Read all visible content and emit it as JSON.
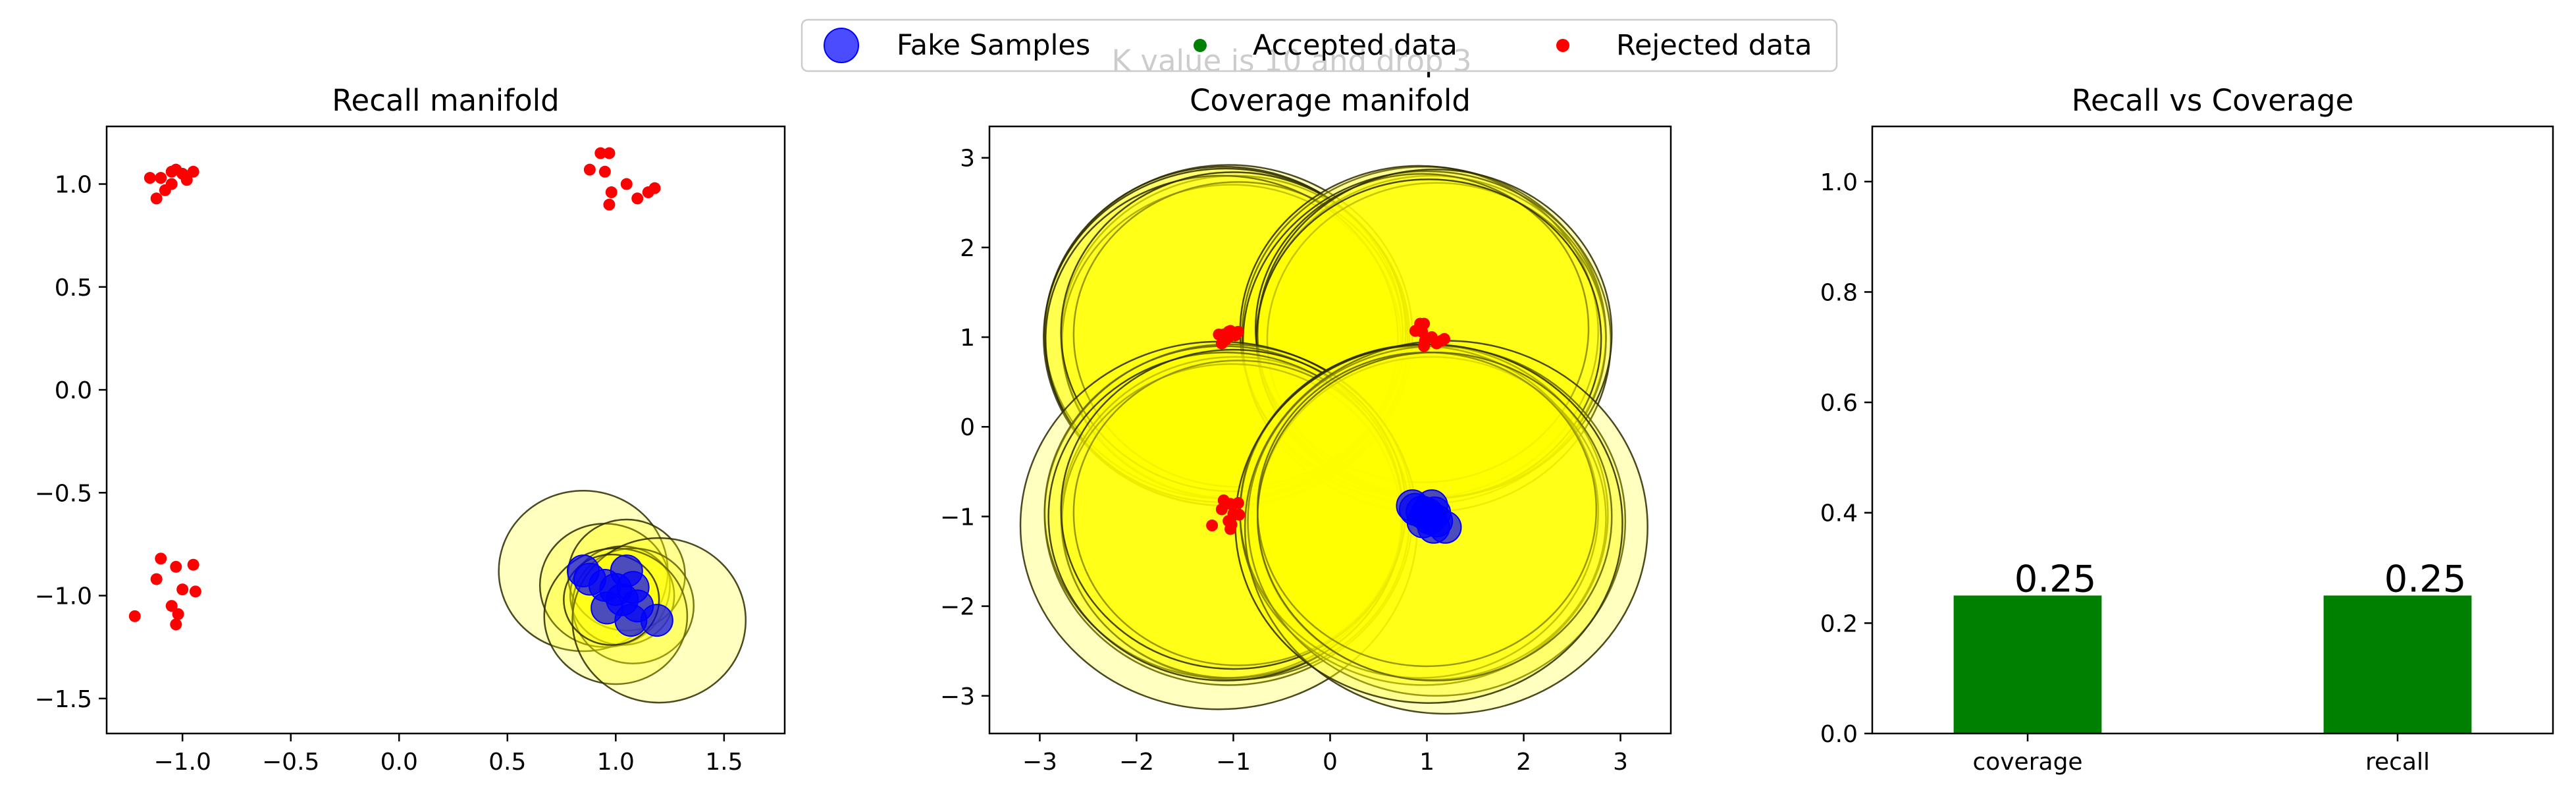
{
  "figure": {
    "suptitle": "K value is 10 and drop 3",
    "legend": {
      "placement": "top-center",
      "entries": [
        {
          "label": "Fake Samples",
          "color": "#0000ff",
          "marker": "large-circle"
        },
        {
          "label": "Accepted data",
          "color": "#008000",
          "marker": "small-dot"
        },
        {
          "label": "Rejected data",
          "color": "#ff0000",
          "marker": "small-dot"
        }
      ]
    }
  },
  "chart_data": [
    {
      "type": "scatter",
      "title": "Recall manifold",
      "xlabel": "",
      "ylabel": "",
      "xlim": [
        -1.35,
        1.78
      ],
      "ylim": [
        -1.67,
        1.28
      ],
      "xticks": [
        "−1.0",
        "−0.5",
        "0.0",
        "0.5",
        "1.0",
        "1.5"
      ],
      "xtick_values": [
        -1.0,
        -0.5,
        0.0,
        0.5,
        1.0,
        1.5
      ],
      "yticks": [
        "−1.5",
        "−1.0",
        "−0.5",
        "0.0",
        "0.5",
        "1.0"
      ],
      "ytick_values": [
        -1.5,
        -1.0,
        -0.5,
        0.0,
        0.5,
        1.0
      ],
      "grid": false,
      "rejected_color": "#ff0000",
      "fake_color": "#0000ff",
      "circle_fill": "#ffff00",
      "rejected": [
        [
          -1.1,
          1.03
        ],
        [
          -1.05,
          1.06
        ],
        [
          -1.0,
          1.05
        ],
        [
          -0.95,
          1.06
        ],
        [
          -1.03,
          1.07
        ],
        [
          -1.08,
          0.97
        ],
        [
          -1.12,
          0.93
        ],
        [
          -1.05,
          1.0
        ],
        [
          -0.98,
          1.02
        ],
        [
          -1.15,
          1.03
        ],
        [
          0.88,
          1.07
        ],
        [
          0.93,
          1.15
        ],
        [
          0.97,
          1.15
        ],
        [
          0.95,
          1.06
        ],
        [
          1.05,
          1.0
        ],
        [
          0.98,
          0.96
        ],
        [
          1.1,
          0.93
        ],
        [
          1.15,
          0.96
        ],
        [
          1.18,
          0.98
        ],
        [
          0.97,
          0.9
        ],
        [
          -1.1,
          -0.82
        ],
        [
          -1.03,
          -0.86
        ],
        [
          -0.95,
          -0.85
        ],
        [
          -1.12,
          -0.92
        ],
        [
          -1.0,
          -0.97
        ],
        [
          -0.94,
          -0.98
        ],
        [
          -1.05,
          -1.05
        ],
        [
          -1.02,
          -1.09
        ],
        [
          -1.03,
          -1.14
        ],
        [
          -1.22,
          -1.1
        ]
      ],
      "fake": [
        [
          0.85,
          -0.88
        ],
        [
          0.88,
          -0.92
        ],
        [
          0.95,
          -0.95
        ],
        [
          1.0,
          -0.97
        ],
        [
          1.05,
          -0.88
        ],
        [
          1.08,
          -0.96
        ],
        [
          1.03,
          -1.02
        ],
        [
          0.96,
          -1.06
        ],
        [
          1.1,
          -1.05
        ],
        [
          1.07,
          -1.12
        ],
        [
          1.19,
          -1.12
        ]
      ],
      "circles": [
        {
          "cx": 0.85,
          "cy": -0.88,
          "r": 0.39
        },
        {
          "cx": 0.95,
          "cy": -0.95,
          "r": 0.3
        },
        {
          "cx": 1.05,
          "cy": -0.9,
          "r": 0.27
        },
        {
          "cx": 1.03,
          "cy": -1.0,
          "r": 0.24
        },
        {
          "cx": 1.08,
          "cy": -1.05,
          "r": 0.28
        },
        {
          "cx": 1.0,
          "cy": -1.1,
          "r": 0.33
        },
        {
          "cx": 1.2,
          "cy": -1.12,
          "r": 0.4
        },
        {
          "cx": 0.98,
          "cy": -1.02,
          "r": 0.22
        }
      ]
    },
    {
      "type": "scatter",
      "title": "Coverage manifold",
      "xlabel": "",
      "ylabel": "",
      "xlim": [
        -3.52,
        3.52
      ],
      "ylim": [
        -3.42,
        3.35
      ],
      "xticks": [
        "−3",
        "−2",
        "−1",
        "0",
        "1",
        "2",
        "3"
      ],
      "xtick_values": [
        -3,
        -2,
        -1,
        0,
        1,
        2,
        3
      ],
      "yticks": [
        "−3",
        "−2",
        "−1",
        "0",
        "1",
        "2",
        "3"
      ],
      "ytick_values": [
        -3,
        -2,
        -1,
        0,
        1,
        2,
        3
      ],
      "grid": false,
      "rejected_color": "#ff0000",
      "fake_color": "#0000ff",
      "circle_fill": "#ffff00",
      "rejected": [
        [
          -1.1,
          1.03
        ],
        [
          -1.05,
          1.06
        ],
        [
          -1.0,
          1.05
        ],
        [
          -0.95,
          1.06
        ],
        [
          -1.03,
          1.07
        ],
        [
          -1.08,
          0.97
        ],
        [
          -1.12,
          0.93
        ],
        [
          -1.05,
          1.0
        ],
        [
          -0.98,
          1.02
        ],
        [
          -1.15,
          1.03
        ],
        [
          0.88,
          1.07
        ],
        [
          0.93,
          1.15
        ],
        [
          0.97,
          1.15
        ],
        [
          0.95,
          1.06
        ],
        [
          1.05,
          1.0
        ],
        [
          0.98,
          0.96
        ],
        [
          1.1,
          0.93
        ],
        [
          1.15,
          0.96
        ],
        [
          1.18,
          0.98
        ],
        [
          0.97,
          0.9
        ],
        [
          -1.1,
          -0.82
        ],
        [
          -1.03,
          -0.86
        ],
        [
          -0.95,
          -0.85
        ],
        [
          -1.12,
          -0.92
        ],
        [
          -1.0,
          -0.97
        ],
        [
          -0.94,
          -0.98
        ],
        [
          -1.05,
          -1.05
        ],
        [
          -1.02,
          -1.09
        ],
        [
          -1.03,
          -1.14
        ],
        [
          -1.22,
          -1.1
        ]
      ],
      "fake": [
        [
          0.85,
          -0.88
        ],
        [
          0.88,
          -0.92
        ],
        [
          0.95,
          -0.95
        ],
        [
          1.0,
          -0.97
        ],
        [
          1.05,
          -0.88
        ],
        [
          1.08,
          -0.96
        ],
        [
          1.03,
          -1.02
        ],
        [
          0.96,
          -1.06
        ],
        [
          1.1,
          -1.05
        ],
        [
          1.07,
          -1.12
        ],
        [
          1.19,
          -1.12
        ]
      ],
      "circles": [
        {
          "cx": -1.05,
          "cy": 1.02,
          "r": 1.9
        },
        {
          "cx": -0.98,
          "cy": 1.0,
          "r": 1.8
        },
        {
          "cx": -1.1,
          "cy": 1.05,
          "r": 1.85
        },
        {
          "cx": -1.02,
          "cy": 0.95,
          "r": 1.75
        },
        {
          "cx": -1.08,
          "cy": 1.0,
          "r": 1.88
        },
        {
          "cx": -0.95,
          "cy": 1.03,
          "r": 1.7
        },
        {
          "cx": -1.12,
          "cy": 0.98,
          "r": 1.82
        },
        {
          "cx": -1.0,
          "cy": 1.06,
          "r": 1.78
        },
        {
          "cx": 0.97,
          "cy": 1.02,
          "r": 1.88
        },
        {
          "cx": 1.05,
          "cy": 1.0,
          "r": 1.8
        },
        {
          "cx": 0.92,
          "cy": 1.06,
          "r": 1.85
        },
        {
          "cx": 1.1,
          "cy": 0.97,
          "r": 1.75
        },
        {
          "cx": 1.0,
          "cy": 0.95,
          "r": 1.9
        },
        {
          "cx": 0.95,
          "cy": 1.1,
          "r": 1.72
        },
        {
          "cx": 1.08,
          "cy": 1.04,
          "r": 1.83
        },
        {
          "cx": 1.02,
          "cy": 0.98,
          "r": 1.78
        },
        {
          "cx": -1.05,
          "cy": -0.98,
          "r": 1.9
        },
        {
          "cx": -0.98,
          "cy": -1.02,
          "r": 1.8
        },
        {
          "cx": -1.1,
          "cy": -0.95,
          "r": 1.85
        },
        {
          "cx": -1.02,
          "cy": -1.05,
          "r": 1.75
        },
        {
          "cx": -1.15,
          "cy": -1.1,
          "r": 2.05
        },
        {
          "cx": -0.95,
          "cy": -0.96,
          "r": 1.7
        },
        {
          "cx": -1.08,
          "cy": -1.0,
          "r": 1.83
        },
        {
          "cx": -1.0,
          "cy": -0.92,
          "r": 1.78
        },
        {
          "cx": 0.97,
          "cy": -0.98,
          "r": 1.9
        },
        {
          "cx": 1.05,
          "cy": -1.02,
          "r": 1.8
        },
        {
          "cx": 0.92,
          "cy": -0.95,
          "r": 1.85
        },
        {
          "cx": 1.1,
          "cy": -1.05,
          "r": 1.95
        },
        {
          "cx": 1.2,
          "cy": -1.12,
          "r": 2.08
        },
        {
          "cx": 1.0,
          "cy": -0.92,
          "r": 1.75
        },
        {
          "cx": 1.08,
          "cy": -1.0,
          "r": 1.83
        },
        {
          "cx": 1.02,
          "cy": -1.08,
          "r": 2.0
        }
      ]
    },
    {
      "type": "bar",
      "title": "Recall vs Coverage",
      "xlabel": "",
      "ylabel": "",
      "categories": [
        "coverage",
        "recall"
      ],
      "values": [
        0.25,
        0.25
      ],
      "value_labels": [
        "0.25",
        "0.25"
      ],
      "ylim": [
        0.0,
        1.1
      ],
      "yticks": [
        "0.0",
        "0.2",
        "0.4",
        "0.6",
        "0.8",
        "1.0"
      ],
      "ytick_values": [
        0.0,
        0.2,
        0.4,
        0.6,
        0.8,
        1.0
      ],
      "grid": false,
      "bar_color": "#008000"
    }
  ]
}
